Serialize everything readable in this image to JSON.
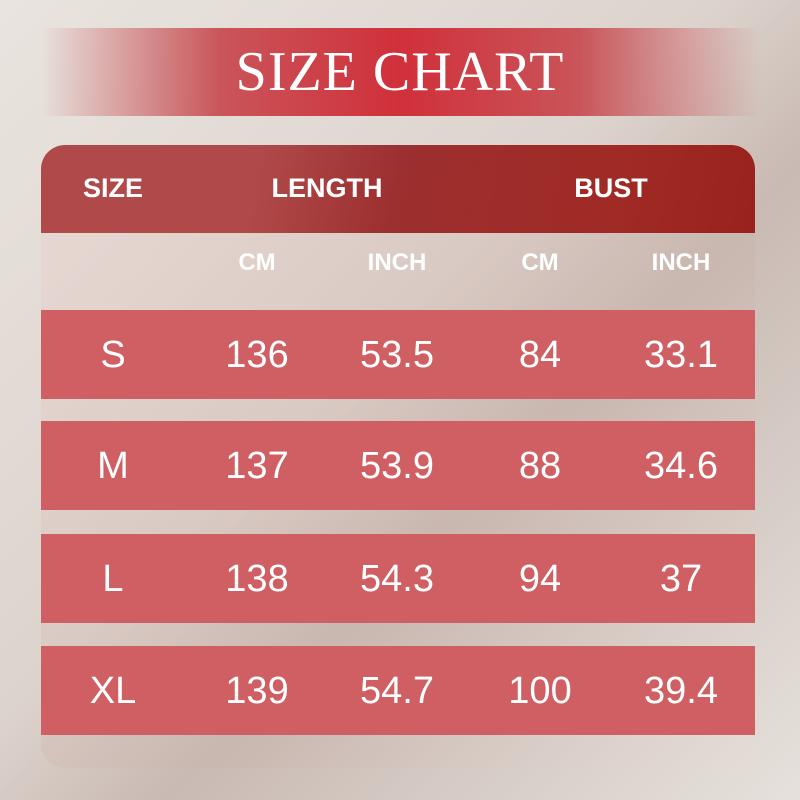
{
  "title": "SIZE CHART",
  "header": {
    "size": "SIZE",
    "length": "LENGTH",
    "bust": "BUST"
  },
  "subheader": [
    "CM",
    "INCH",
    "CM",
    "INCH"
  ],
  "rows": [
    [
      "S",
      "136",
      "53.5",
      "84",
      "33.1"
    ],
    [
      "M",
      "137",
      "53.9",
      "88",
      "34.6"
    ],
    [
      "L",
      "138",
      "54.3",
      "94",
      "37"
    ],
    [
      "XL",
      "139",
      "54.7",
      "100",
      "39.4"
    ]
  ],
  "colors": {
    "title_banner": "#d0303a",
    "header": "#9c2f2f",
    "row": "#cf5f63",
    "text": "#ffffff"
  }
}
